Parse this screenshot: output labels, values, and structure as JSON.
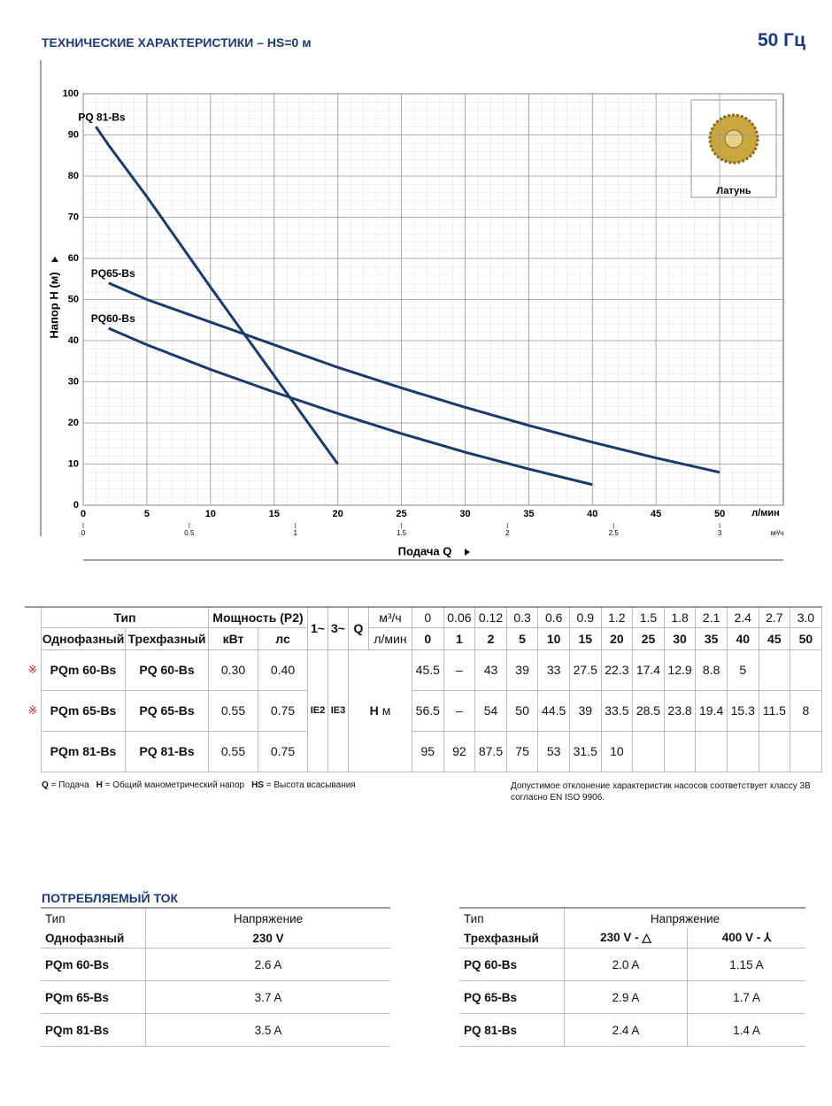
{
  "header": {
    "title": "ТЕХНИЧЕСКИЕ ХАРАКТЕРИСТИКИ – HS=0 м",
    "frequency": "50 Гц"
  },
  "chart_data": {
    "type": "line",
    "ylabel": "Напор H (м)",
    "xlabel": "Подача Q",
    "xunit": "л/мин",
    "x2unit": "м³/ч",
    "inset_label": "Латунь",
    "xlim": [
      0,
      55
    ],
    "xticks": [
      0,
      5,
      10,
      15,
      20,
      25,
      30,
      35,
      40,
      45,
      50
    ],
    "x2lim": [
      0,
      3.3
    ],
    "x2ticks": [
      0,
      0.5,
      1,
      1.5,
      2,
      2.5,
      3
    ],
    "ylim": [
      0,
      100
    ],
    "yticks": [
      0,
      10,
      20,
      30,
      40,
      50,
      60,
      70,
      80,
      90,
      100
    ],
    "grid": true,
    "series": [
      {
        "name": "PQ 81-Bs",
        "color": "#1b3a6b",
        "x": [
          1,
          2,
          5,
          10,
          15,
          20
        ],
        "values": [
          92,
          87.5,
          75,
          53,
          31.5,
          10
        ]
      },
      {
        "name": "PQ65-Bs",
        "color": "#1b3a6b",
        "x": [
          2,
          5,
          10,
          15,
          20,
          25,
          30,
          35,
          40,
          45,
          50
        ],
        "values": [
          54,
          50,
          44.5,
          39,
          33.5,
          28.5,
          23.8,
          19.4,
          15.3,
          11.5,
          8
        ]
      },
      {
        "name": "PQ60-Bs",
        "color": "#1b3a6b",
        "x": [
          2,
          5,
          10,
          15,
          20,
          25,
          30,
          35,
          40
        ],
        "values": [
          43,
          39,
          33,
          27.5,
          22.3,
          17.4,
          12.9,
          8.8,
          5
        ]
      }
    ]
  },
  "table": {
    "type": "Тип",
    "power": "Мощность (P2)",
    "single": "Однофазный",
    "three": "Трехфазный",
    "kw": "кВт",
    "hp": "лс",
    "ph1": "1~",
    "ph3": "3~",
    "q": "Q",
    "m3h": "м³/ч",
    "lmin": "л/мин",
    "h": "H",
    "h_unit": "м",
    "ie": [
      "IE2",
      "IE3"
    ],
    "q_m3h": [
      "0",
      "0.06",
      "0.12",
      "0.3",
      "0.6",
      "0.9",
      "1.2",
      "1.5",
      "1.8",
      "2.1",
      "2.4",
      "2.7",
      "3.0"
    ],
    "q_lmin": [
      "0",
      "1",
      "2",
      "5",
      "10",
      "15",
      "20",
      "25",
      "30",
      "35",
      "40",
      "45",
      "50"
    ],
    "rows": [
      {
        "mark": "※",
        "single": "PQm 60-Bs",
        "three": "PQ 60-Bs",
        "kw": "0.30",
        "hp": "0.40",
        "h": [
          "45.5",
          "–",
          "43",
          "39",
          "33",
          "27.5",
          "22.3",
          "17.4",
          "12.9",
          "8.8",
          "5",
          null,
          null
        ]
      },
      {
        "mark": "※",
        "single": "PQm 65-Bs",
        "three": "PQ 65-Bs",
        "kw": "0.55",
        "hp": "0.75",
        "h": [
          "56.5",
          "–",
          "54",
          "50",
          "44.5",
          "39",
          "33.5",
          "28.5",
          "23.8",
          "19.4",
          "15.3",
          "11.5",
          "8"
        ]
      },
      {
        "single": "PQm 81-Bs",
        "three": "PQ 81-Bs",
        "kw": "0.55",
        "hp": "0.75",
        "h": [
          "95",
          "92",
          "87.5",
          "75",
          "53",
          "31.5",
          "10",
          null,
          null,
          null,
          null,
          null,
          null
        ]
      }
    ]
  },
  "notes": {
    "left": [
      {
        "key": "Q",
        "text": "= Подача"
      },
      {
        "key": "H",
        "text": "= Общий манометрический напор"
      },
      {
        "key": "HS",
        "text": "= Высота всасывания"
      }
    ],
    "right": "Допустимое отклонение характеристик насосов соответствует классу 3B согласно EN ISO 9906."
  },
  "current": {
    "title": "ПОТРЕБЛЯЕМЫЙ ТОК",
    "single": {
      "type": "Тип",
      "voltage": "Напряжение",
      "phase": "Однофазный",
      "columns": [
        "230 V"
      ],
      "rows": [
        [
          "PQm 60-Bs",
          "2.6 A"
        ],
        [
          "PQm 65-Bs",
          "3.7 A"
        ],
        [
          "PQm 81-Bs",
          "3.5 A"
        ]
      ]
    },
    "three": {
      "type": "Тип",
      "voltage": "Напряжение",
      "phase": "Трехфазный",
      "columns": [
        "230 V - △",
        "400 V - ⅄"
      ],
      "rows": [
        [
          "PQ 60-Bs",
          "2.0 A",
          "1.15 A"
        ],
        [
          "PQ 65-Bs",
          "2.9 A",
          "1.7 A"
        ],
        [
          "PQ 81-Bs",
          "2.4 A",
          "1.4 A"
        ]
      ]
    }
  }
}
